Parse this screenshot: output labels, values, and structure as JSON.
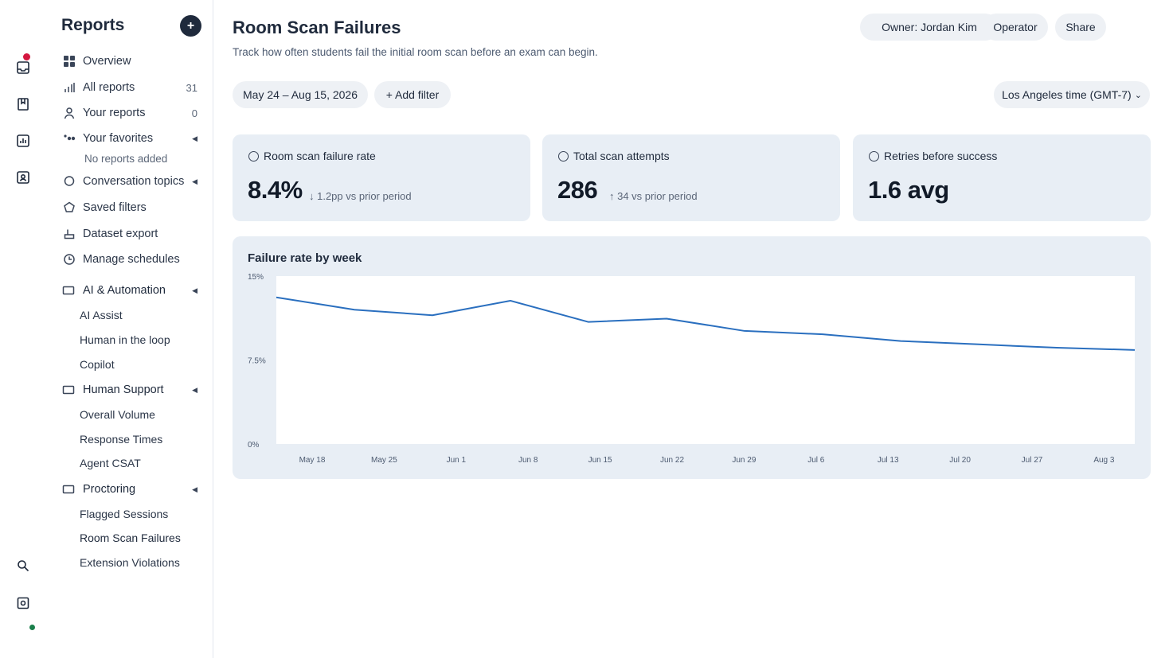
{
  "sidebar": {
    "title": "Reports",
    "add_label": "+",
    "items": [
      {
        "label": "Overview",
        "count": ""
      },
      {
        "label": "All reports",
        "count": "31"
      },
      {
        "label": "Your reports",
        "count": "0"
      },
      {
        "label": "Your favorites",
        "count": ""
      }
    ],
    "favorites_note": "No reports added",
    "links": [
      {
        "label": "Conversation topics"
      },
      {
        "label": "Saved filters"
      },
      {
        "label": "Dataset export"
      },
      {
        "label": "Manage schedules"
      }
    ],
    "sections": [
      {
        "label": "AI & Automation",
        "items": [
          "AI Assist",
          "Human in the loop",
          "Copilot"
        ]
      },
      {
        "label": "Human Support",
        "items": [
          "Overall Volume",
          "Response Times",
          "Agent CSAT"
        ]
      },
      {
        "label": "Proctoring",
        "items": [
          "Flagged Sessions",
          "Room Scan Failures",
          "Extension Violations"
        ]
      }
    ],
    "active_item": "Room Scan Failures"
  },
  "header": {
    "title": "Room Scan Failures",
    "subtitle": "Track how often students fail the initial room scan before an exam can begin.",
    "owner_label": "Owner: Jordan Kim",
    "role_label": "Operator",
    "share_label": "Share"
  },
  "filters": {
    "date_range": "May 24 – Aug 15, 2026",
    "add_filter": "+ Add filter",
    "timezone": "Los Angeles time (GMT-7)",
    "timezone_caret": "⌄"
  },
  "metrics": [
    {
      "label": "Room scan failure rate",
      "value": "8.4%",
      "delta": "↓ 1.2pp vs prior period"
    },
    {
      "label": "Total scan attempts",
      "value": "286",
      "delta": "↑ 34 vs prior period"
    },
    {
      "label": "Retries before success",
      "value": "1.6 avg",
      "delta": ""
    }
  ],
  "chart": {
    "title": "Failure rate by week"
  },
  "chart_data": {
    "type": "line",
    "title": "Failure rate by week",
    "xlabel": "",
    "ylabel": "",
    "ylim": [
      0,
      15
    ],
    "y_ticks": [
      "15%",
      "7.5%",
      "0%"
    ],
    "y_tick_values": [
      15,
      7.5,
      0
    ],
    "categories": [
      "May 18",
      "May 25",
      "Jun 1",
      "Jun 8",
      "Jun 15",
      "Jun 22",
      "Jun 29",
      "Jul 6",
      "Jul 13",
      "Jul 20",
      "Jul 27",
      "Aug 3"
    ],
    "series": [
      {
        "values": [
          13.1,
          12.0,
          11.5,
          12.8,
          10.9,
          11.2,
          10.1,
          9.8,
          9.2,
          8.9,
          8.6,
          8.4
        ],
        "color": "#2a6fbf"
      }
    ],
    "grid": false,
    "legend": "none"
  },
  "colors": {
    "accent": "#1f2a3c",
    "line": "#2a6fbf",
    "card_bg": "#e8eef5",
    "notification": "#d4173f",
    "online": "#1a7f4b"
  }
}
